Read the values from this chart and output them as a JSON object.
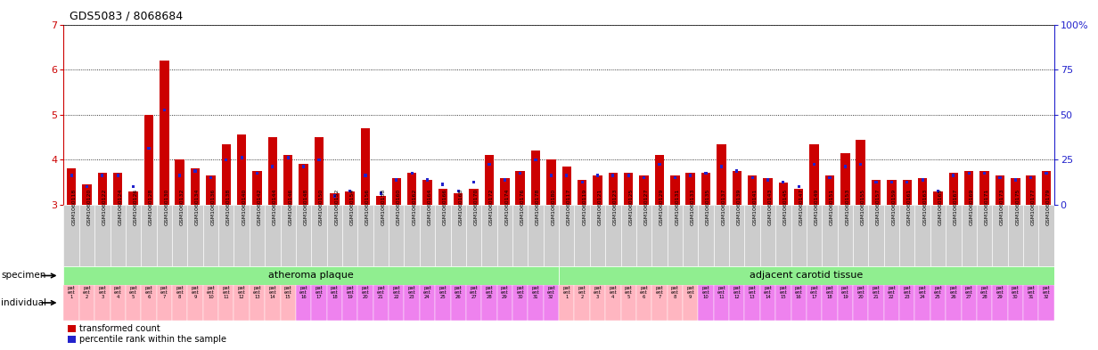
{
  "title": "GDS5083 / 8068684",
  "ylim_left": [
    3,
    7
  ],
  "ylim_right": [
    0,
    100
  ],
  "left_yticks": [
    3,
    4,
    5,
    6,
    7
  ],
  "right_yticks": [
    0,
    25,
    50,
    75,
    100
  ],
  "right_yticklabels": [
    "0",
    "25",
    "50",
    "75",
    "100%"
  ],
  "plaque_samples": [
    "GSM1060118",
    "GSM1060120",
    "GSM1060122",
    "GSM1060124",
    "GSM1060126",
    "GSM1060128",
    "GSM1060130",
    "GSM1060132",
    "GSM1060134",
    "GSM1060136",
    "GSM1060138",
    "GSM1060140",
    "GSM1060142",
    "GSM1060144",
    "GSM1060146",
    "GSM1060148",
    "GSM1060150",
    "GSM1060152",
    "GSM1060154",
    "GSM1060156",
    "GSM1060158",
    "GSM1060160",
    "GSM1060162",
    "GSM1060164",
    "GSM1060166",
    "GSM1060168",
    "GSM1060170",
    "GSM1060172",
    "GSM1060174",
    "GSM1060176",
    "GSM1060178",
    "GSM1060180"
  ],
  "tissue_samples": [
    "GSM1060117",
    "GSM1060119",
    "GSM1060121",
    "GSM1060123",
    "GSM1060125",
    "GSM1060127",
    "GSM1060129",
    "GSM1060131",
    "GSM1060133",
    "GSM1060135",
    "GSM1060137",
    "GSM1060139",
    "GSM1060141",
    "GSM1060143",
    "GSM1060145",
    "GSM1060147",
    "GSM1060149",
    "GSM1060151",
    "GSM1060153",
    "GSM1060155",
    "GSM1060157",
    "GSM1060159",
    "GSM1060161",
    "GSM1060163",
    "GSM1060165",
    "GSM1060167",
    "GSM1060169",
    "GSM1060171",
    "GSM1060173",
    "GSM1060175",
    "GSM1060177",
    "GSM1060179"
  ],
  "plaque_red": [
    3.8,
    3.45,
    3.7,
    3.7,
    3.3,
    5.0,
    6.2,
    4.0,
    3.8,
    3.65,
    4.35,
    4.55,
    3.75,
    4.5,
    4.1,
    3.9,
    4.5,
    3.25,
    3.3,
    4.7,
    3.2,
    3.6,
    3.7,
    3.55,
    3.35,
    3.25,
    3.35,
    4.1,
    3.6,
    3.75,
    4.2,
    4.0
  ],
  "plaque_blue": [
    3.65,
    3.4,
    3.65,
    3.65,
    3.4,
    4.25,
    5.1,
    3.65,
    3.75,
    3.6,
    4.0,
    4.05,
    3.7,
    3.85,
    4.05,
    3.85,
    4.0,
    3.2,
    3.3,
    3.65,
    3.25,
    3.55,
    3.7,
    3.55,
    3.45,
    3.3,
    3.5,
    3.9,
    3.55,
    3.7,
    4.0,
    3.65
  ],
  "tissue_red": [
    3.85,
    3.55,
    3.65,
    3.7,
    3.7,
    3.65,
    4.1,
    3.65,
    3.7,
    3.7,
    4.35,
    3.75,
    3.65,
    3.6,
    3.5,
    3.35,
    4.35,
    3.65,
    4.15,
    4.45,
    3.55,
    3.55,
    3.55,
    3.6,
    3.3,
    3.7,
    3.75,
    3.75,
    3.65,
    3.6,
    3.65,
    3.75
  ],
  "tissue_blue": [
    3.65,
    3.5,
    3.65,
    3.65,
    3.65,
    3.6,
    3.9,
    3.6,
    3.65,
    3.7,
    3.85,
    3.75,
    3.6,
    3.55,
    3.5,
    3.4,
    3.9,
    3.6,
    3.85,
    3.9,
    3.5,
    3.5,
    3.5,
    3.55,
    3.3,
    3.65,
    3.7,
    3.7,
    3.6,
    3.55,
    3.6,
    3.7
  ],
  "red_color": "#cc0000",
  "blue_color": "#2222cc",
  "axis_color": "#cc0000",
  "right_axis_color": "#2222cc",
  "plaque_color": "#90ee90",
  "tissue_color": "#90ee90",
  "plaque_indiv_nums": [
    1,
    2,
    3,
    4,
    5,
    6,
    7,
    8,
    9,
    10,
    11,
    12,
    13,
    14,
    15,
    16,
    17,
    18,
    19,
    20,
    21,
    22,
    23,
    24,
    25,
    26,
    27,
    28,
    29,
    30,
    31,
    32
  ],
  "tissue_indiv_nums": [
    1,
    2,
    3,
    4,
    5,
    6,
    7,
    8,
    9,
    10,
    11,
    12,
    13,
    14,
    15,
    16,
    17,
    18,
    19,
    20,
    21,
    22,
    23,
    24,
    25,
    26,
    27,
    28,
    29,
    30,
    31,
    32
  ],
  "plaque_colors": [
    "#ffb6c1",
    "#ffb6c1",
    "#ffb6c1",
    "#ffb6c1",
    "#ffb6c1",
    "#ffb6c1",
    "#ffb6c1",
    "#ffb6c1",
    "#ffb6c1",
    "#ffb6c1",
    "#ffb6c1",
    "#ffb6c1",
    "#ffb6c1",
    "#ffb6c1",
    "#ffb6c1",
    "#ee82ee",
    "#ee82ee",
    "#ee82ee",
    "#ee82ee",
    "#ee82ee",
    "#ee82ee",
    "#ee82ee",
    "#ee82ee",
    "#ee82ee",
    "#ee82ee",
    "#ee82ee",
    "#ee82ee",
    "#ee82ee",
    "#ee82ee",
    "#ee82ee",
    "#ee82ee",
    "#ee82ee"
  ],
  "tissue_colors": [
    "#ffb6c1",
    "#ffb6c1",
    "#ffb6c1",
    "#ffb6c1",
    "#ffb6c1",
    "#ffb6c1",
    "#ffb6c1",
    "#ffb6c1",
    "#ffb6c1",
    "#ee82ee",
    "#ee82ee",
    "#ee82ee",
    "#ee82ee",
    "#ee82ee",
    "#ee82ee",
    "#ee82ee",
    "#ee82ee",
    "#ee82ee",
    "#ee82ee",
    "#ee82ee",
    "#ee82ee",
    "#ee82ee",
    "#ee82ee",
    "#ee82ee",
    "#ee82ee",
    "#ee82ee",
    "#ee82ee",
    "#ee82ee",
    "#ee82ee",
    "#ee82ee",
    "#ee82ee",
    "#ee82ee"
  ],
  "specimen_label": "specimen",
  "individual_label": "individual",
  "group1_label": "atheroma plaque",
  "group2_label": "adjacent carotid tissue",
  "legend_red_label": "transformed count",
  "legend_blue_label": "percentile rank within the sample"
}
